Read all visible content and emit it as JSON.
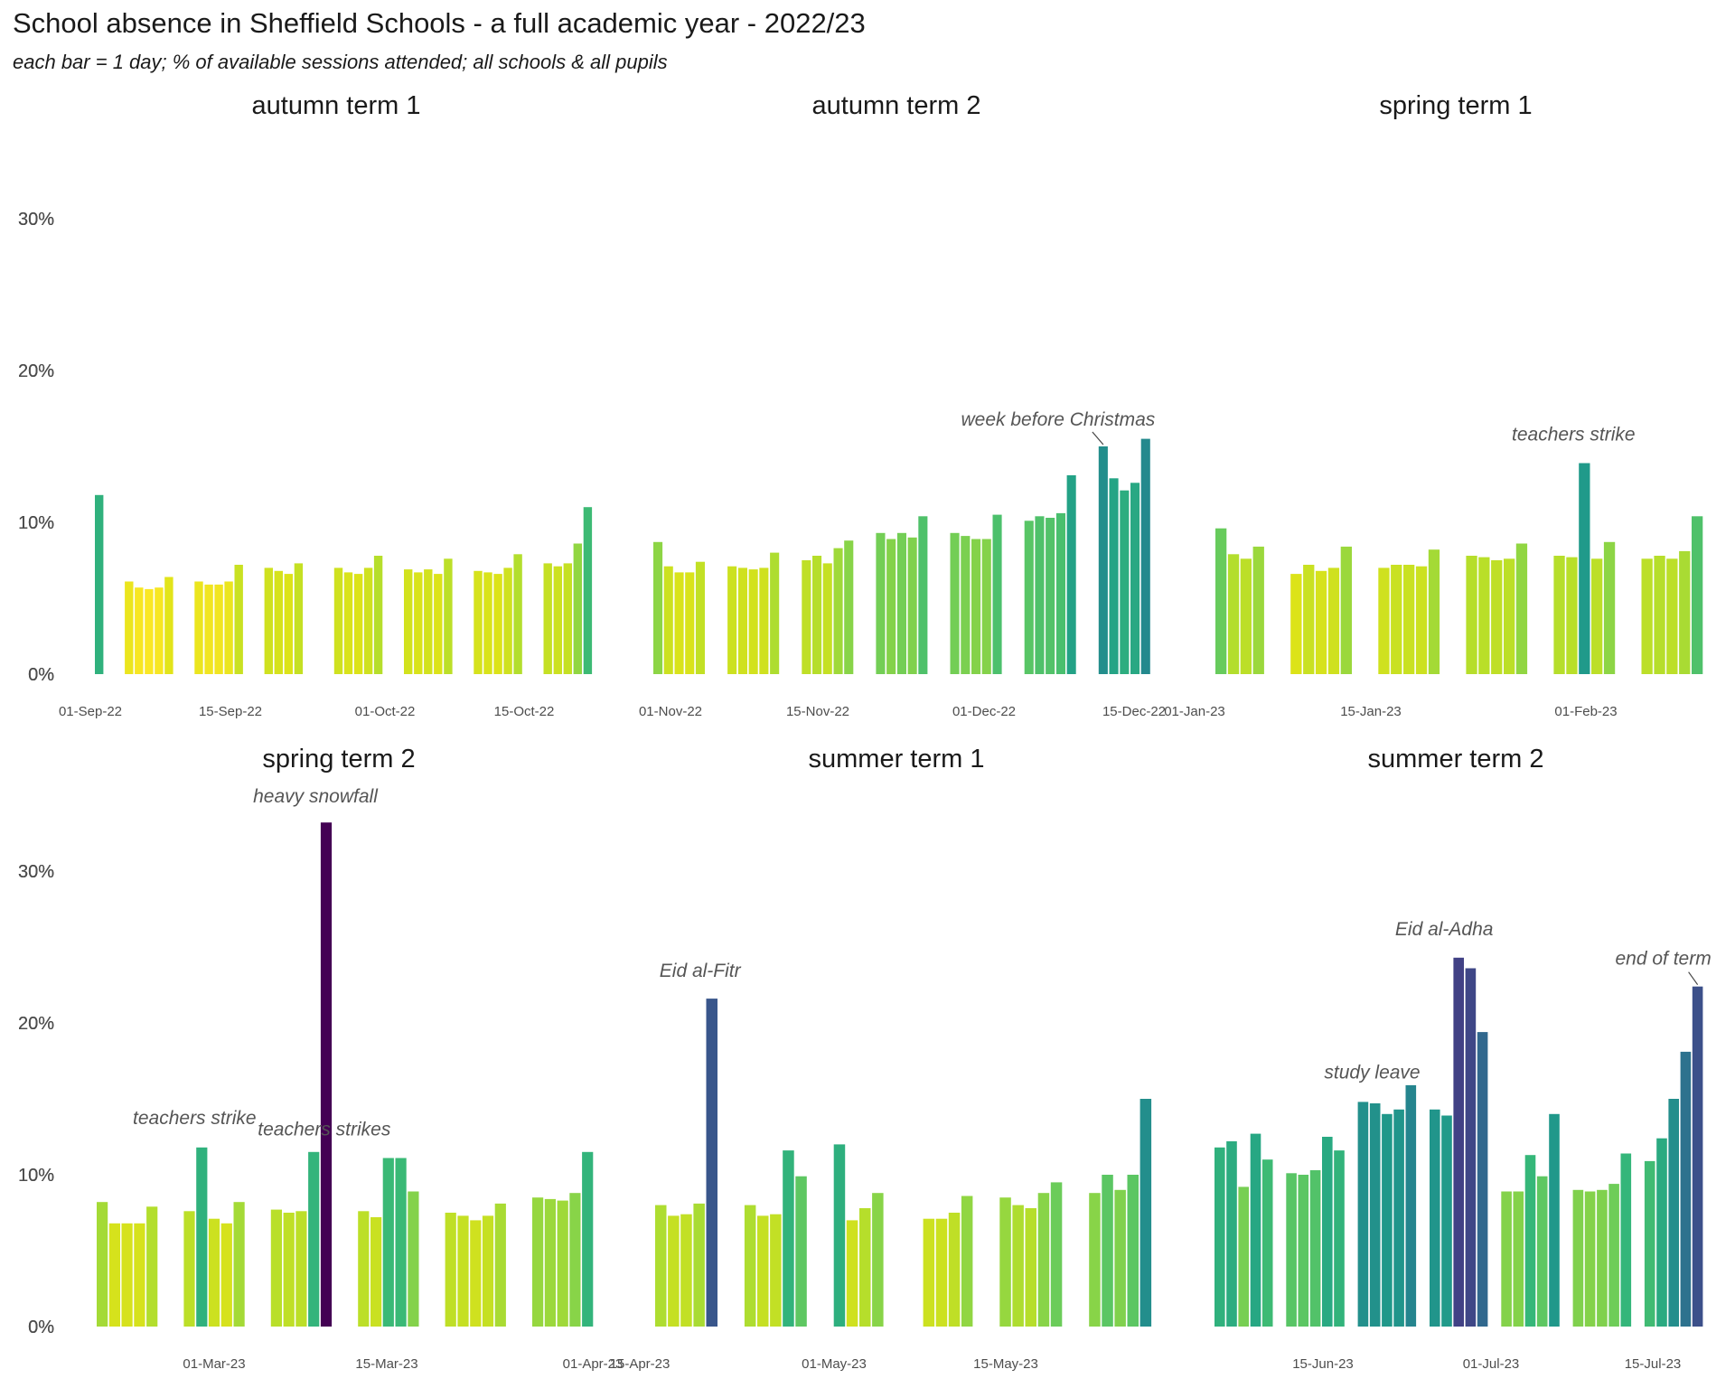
{
  "title": "School absence in Sheffield Schools - a full academic year - 2022/23",
  "subtitle": "each bar = 1 day; % of available sessions attended; all schools & all pupils",
  "chart_data": {
    "type": "bar",
    "y_ticks": [
      "0%",
      "10%",
      "20%",
      "30%"
    ],
    "ylim": [
      0,
      35
    ],
    "grid": false,
    "colormap": "viridis (reversed): low absence = yellow, high absence = purple",
    "panels": [
      {
        "title": "autumn term 1",
        "x_ticks": [
          "01-Sep-22",
          "15-Sep-22",
          "01-Oct-22",
          "15-Oct-22"
        ],
        "weeks": [
          {
            "x0": 0,
            "values": [
              11.8
            ]
          },
          {
            "x0": 3,
            "values": [
              6.1,
              5.7,
              5.6,
              5.7,
              6.4
            ]
          },
          {
            "x0": 10,
            "values": [
              6.1,
              5.9,
              5.9,
              6.1,
              7.2
            ]
          },
          {
            "x0": 17,
            "values": [
              7.0,
              6.8,
              6.6,
              7.3
            ]
          },
          {
            "x0": 24,
            "values": [
              7.0,
              6.7,
              6.6,
              7.0,
              7.8
            ]
          },
          {
            "x0": 31,
            "values": [
              6.9,
              6.7,
              6.9,
              6.6,
              7.6
            ]
          },
          {
            "x0": 38,
            "values": [
              6.8,
              6.7,
              6.6,
              7.0,
              7.9
            ]
          },
          {
            "x0": 45,
            "values": [
              7.3,
              7.1,
              7.3,
              8.6,
              11.0
            ]
          }
        ]
      },
      {
        "title": "autumn term 2",
        "x_ticks": [
          "01-Nov-22",
          "15-Nov-22",
          "01-Dec-22",
          "15-Dec-22"
        ],
        "weeks": [
          {
            "x0": 0,
            "values": [
              8.7,
              7.1,
              6.7,
              6.7,
              7.4
            ]
          },
          {
            "x0": 7,
            "values": [
              7.1,
              7.0,
              6.9,
              7.0,
              8.0
            ]
          },
          {
            "x0": 14,
            "values": [
              7.5,
              7.8,
              7.3,
              8.3,
              8.8
            ]
          },
          {
            "x0": 21,
            "values": [
              9.3,
              8.9,
              9.3,
              9.0,
              10.4
            ]
          },
          {
            "x0": 28,
            "values": [
              9.3,
              9.1,
              8.9,
              8.9,
              10.5
            ]
          },
          {
            "x0": 35,
            "values": [
              10.1,
              10.4,
              10.3,
              10.6,
              13.1
            ]
          },
          {
            "x0": 42,
            "values": [
              15.0,
              12.9,
              12.1,
              12.6,
              15.5
            ]
          }
        ],
        "annotations": [
          {
            "text": "week before Christmas",
            "bar": [
              6,
              0
            ]
          }
        ]
      },
      {
        "title": "spring term 1",
        "x_ticks": [
          "01-Jan-23",
          "15-Jan-23",
          "01-Feb-23"
        ],
        "weeks": [
          {
            "x0": 0,
            "values": [
              9.6,
              7.9,
              7.6,
              8.4
            ]
          },
          {
            "x0": 6,
            "values": [
              6.6,
              7.2,
              6.8,
              7.0,
              8.4
            ]
          },
          {
            "x0": 13,
            "values": [
              7.0,
              7.2,
              7.2,
              7.1,
              8.2
            ]
          },
          {
            "x0": 20,
            "values": [
              7.8,
              7.7,
              7.5,
              7.6,
              8.6
            ]
          },
          {
            "x0": 27,
            "values": [
              7.8,
              7.7,
              13.9,
              7.6,
              8.7
            ]
          },
          {
            "x0": 34,
            "values": [
              7.6,
              7.8,
              7.6,
              8.1,
              10.4
            ]
          }
        ],
        "annotations": [
          {
            "text": "teachers strike",
            "bar": [
              4,
              2
            ]
          }
        ]
      },
      {
        "title": "spring term 2",
        "x_ticks": [
          "01-Mar-23",
          "15-Mar-23",
          "01-Apr-23"
        ],
        "weeks": [
          {
            "x0": 0,
            "values": [
              8.2,
              6.8,
              6.8,
              6.8,
              7.9
            ]
          },
          {
            "x0": 7,
            "values": [
              7.6,
              11.8,
              7.1,
              6.8,
              8.2
            ]
          },
          {
            "x0": 14,
            "values": [
              7.7,
              7.5,
              7.6,
              11.5,
              33.2
            ]
          },
          {
            "x0": 21,
            "values": [
              7.6,
              7.2,
              11.1,
              11.1,
              8.9
            ]
          },
          {
            "x0": 28,
            "values": [
              7.5,
              7.3,
              7.0,
              7.3,
              8.1
            ]
          },
          {
            "x0": 35,
            "values": [
              8.5,
              8.4,
              8.3,
              8.8,
              11.5
            ]
          }
        ],
        "annotations": [
          {
            "text": "teachers strike",
            "bar": [
              1,
              1
            ]
          },
          {
            "text": "heavy snowfall",
            "bar": [
              2,
              4
            ]
          },
          {
            "text": "teachers strikes",
            "bar": [
              3,
              2
            ]
          }
        ]
      },
      {
        "title": "summer term 1",
        "x_ticks": [
          "15-Apr-23",
          "01-May-23",
          "15-May-23"
        ],
        "weeks": [
          {
            "x0": 0,
            "values": [
              8.0,
              7.3,
              7.4,
              8.1,
              21.6
            ]
          },
          {
            "x0": 7,
            "values": [
              8.0,
              7.3,
              7.4,
              11.6,
              9.9
            ]
          },
          {
            "x0": 14,
            "values": [
              12.0,
              7.0,
              7.8,
              8.8
            ]
          },
          {
            "x0": 21,
            "values": [
              7.1,
              7.1,
              7.5,
              8.6
            ]
          },
          {
            "x0": 27,
            "values": [
              8.5,
              8.0,
              7.8,
              8.8,
              9.5
            ]
          },
          {
            "x0": 34,
            "values": [
              8.8,
              10.0,
              9.0,
              10.0,
              15.0
            ]
          }
        ],
        "annotations": [
          {
            "text": "Eid al-Fitr",
            "bar": [
              0,
              4
            ]
          }
        ]
      },
      {
        "title": "summer term 2",
        "x_ticks": [
          "15-Jun-23",
          "01-Jul-23",
          "15-Jul-23"
        ],
        "weeks": [
          {
            "x0": 0,
            "values": [
              11.8,
              12.2,
              9.2,
              12.7,
              11.0
            ]
          },
          {
            "x0": 6,
            "values": [
              10.1,
              10.0,
              10.3,
              12.5,
              11.6
            ]
          },
          {
            "x0": 12,
            "values": [
              14.8,
              14.7,
              14.0,
              14.3,
              15.9
            ]
          },
          {
            "x0": 18,
            "values": [
              14.3,
              13.9,
              24.3,
              23.6,
              19.4
            ]
          },
          {
            "x0": 24,
            "values": [
              8.9,
              8.9,
              11.3,
              9.9,
              14.0
            ]
          },
          {
            "x0": 30,
            "values": [
              9.0,
              8.9,
              9.0,
              9.4,
              11.4
            ]
          },
          {
            "x0": 36,
            "values": [
              10.9,
              12.4,
              15.0,
              18.1,
              22.4
            ]
          }
        ],
        "annotations": [
          {
            "text": "study leave",
            "bar": [
              2,
              0
            ]
          },
          {
            "text": "Eid al-Adha",
            "bar": [
              3,
              2
            ]
          },
          {
            "text": "end of term",
            "bar": [
              6,
              4
            ]
          }
        ]
      }
    ]
  }
}
